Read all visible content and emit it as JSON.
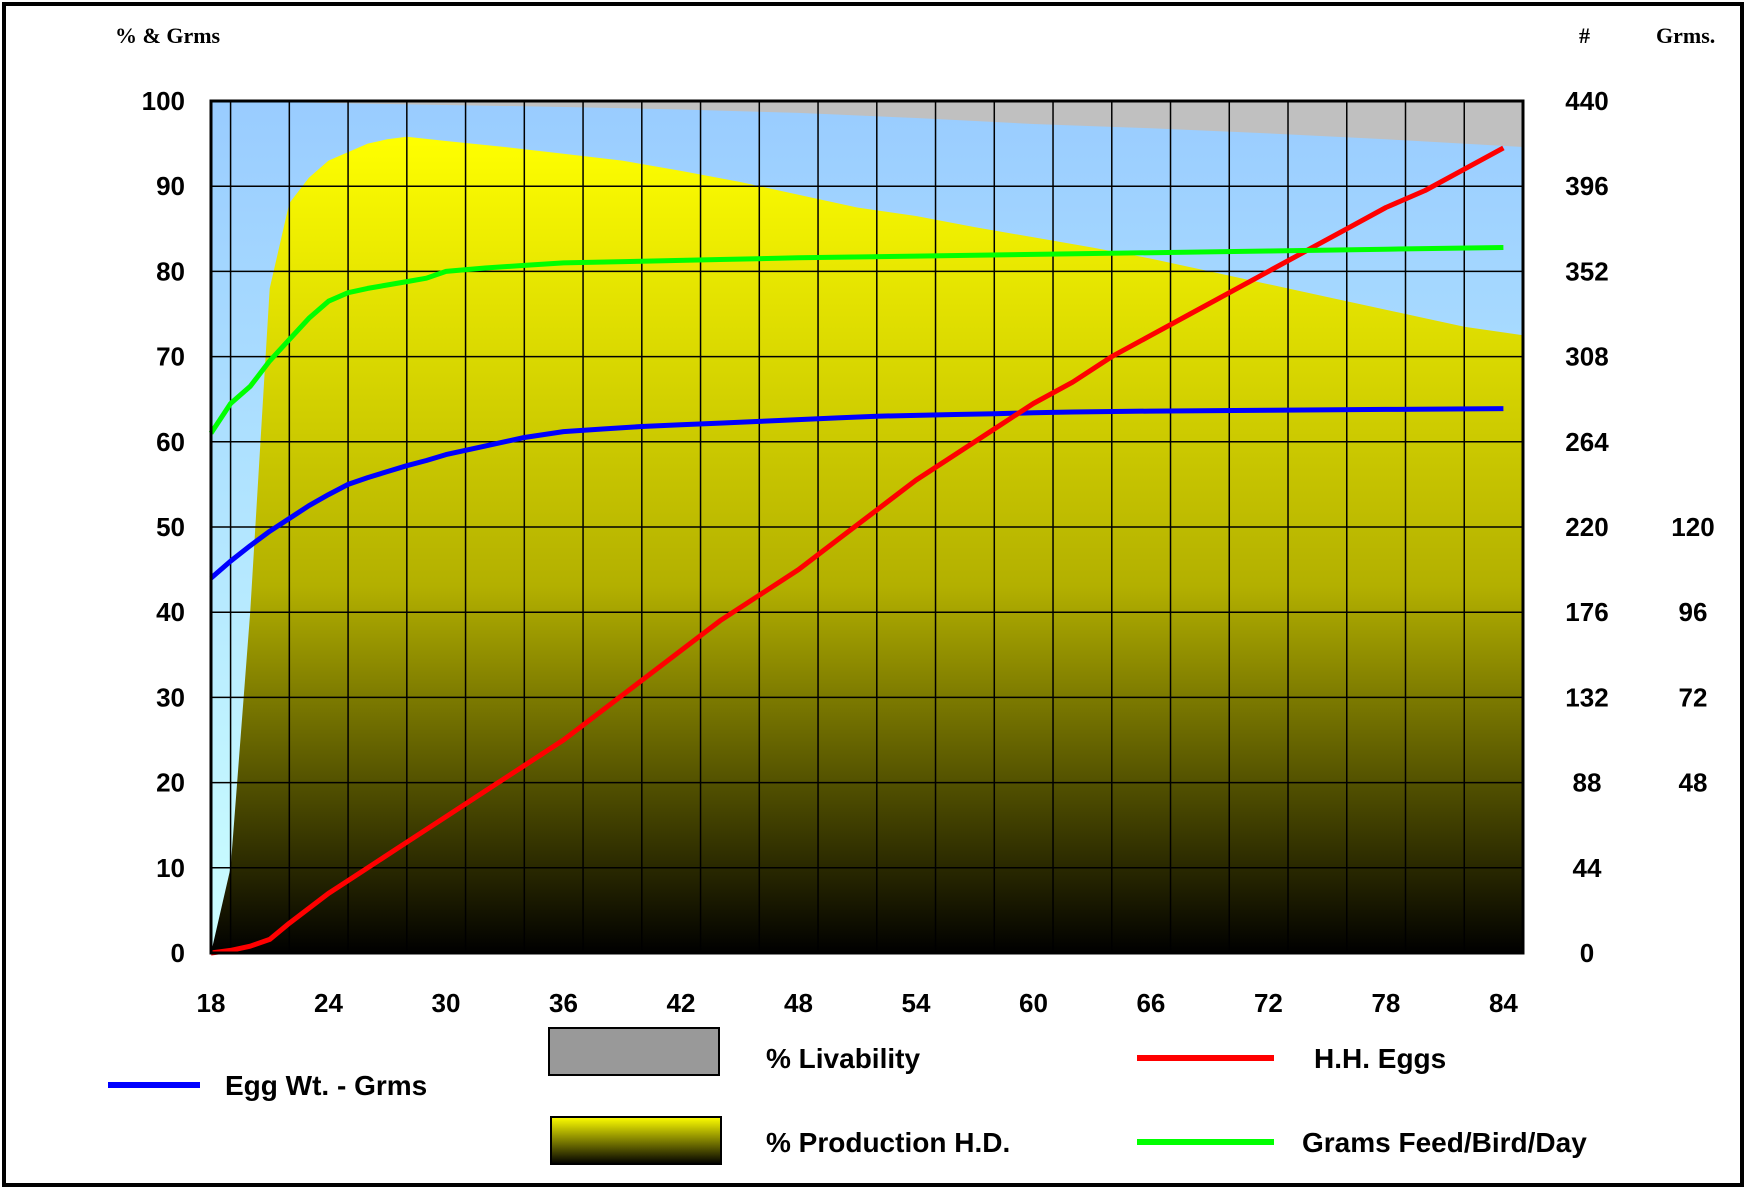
{
  "chart_data": {
    "type": "area",
    "header": {
      "left_axis_title": "% & Grms",
      "right_axis_title_1": "#",
      "right_axis_title_2": "Grms."
    },
    "x_ticks": [
      "18",
      "24",
      "30",
      "36",
      "42",
      "48",
      "54",
      "60",
      "66",
      "72",
      "78",
      "84"
    ],
    "y_left_ticks": [
      "0",
      "10",
      "20",
      "30",
      "40",
      "50",
      "60",
      "70",
      "80",
      "90",
      "100"
    ],
    "y_right1_ticks": [
      "0",
      "44",
      "88",
      "132",
      "176",
      "220",
      "264",
      "308",
      "352",
      "396",
      "440"
    ],
    "y_right2_ticks": [
      "48",
      "72",
      "96",
      "120"
    ],
    "xlim": [
      18,
      85
    ],
    "ylim": [
      0,
      100
    ],
    "grid": true,
    "colors": {
      "livability": "#c0c0c0",
      "production_top": "#ffff00",
      "production_bottom": "#000000",
      "background_top": "#99ccff",
      "background_bottom": "#ccffff",
      "egg_weight": "#0000ff",
      "hh_eggs": "#ff0000",
      "feed": "#00ff00"
    },
    "legend": {
      "egg_weight": "Egg Wt. - Grms",
      "livability": "% Livability",
      "production": "% Production H.D.",
      "hh_eggs": "H.H. Eggs",
      "feed": "Grams Feed/Bird/Day"
    },
    "series": [
      {
        "name": "% Livability",
        "x": [
          18,
          36,
          42,
          48,
          54,
          60,
          66,
          72,
          78,
          85
        ],
        "values": [
          100,
          99.3,
          99.0,
          98.6,
          98.0,
          97.3,
          96.8,
          96.2,
          95.5,
          94.6
        ]
      },
      {
        "name": "% Production H.D.",
        "x": [
          18,
          19,
          20,
          21,
          22,
          23,
          24,
          25,
          26,
          27,
          28,
          30,
          33,
          36,
          39,
          42,
          45,
          48,
          51,
          54,
          57,
          60,
          63,
          66,
          69,
          72,
          75,
          78,
          80,
          82,
          85
        ],
        "values": [
          0,
          10,
          40,
          78,
          88,
          91,
          93,
          94,
          95,
          95.5,
          95.8,
          95.3,
          94.6,
          93.8,
          93.0,
          91.8,
          90.5,
          89.0,
          87.5,
          86.5,
          85.2,
          84.0,
          82.8,
          81.5,
          80.0,
          78.5,
          77.0,
          75.5,
          74.5,
          73.5,
          72.5
        ]
      },
      {
        "name": "Egg Wt. - Grms",
        "x": [
          18,
          19,
          20,
          21,
          22,
          23,
          24,
          25,
          26,
          27,
          28,
          29,
          30,
          32,
          34,
          36,
          38,
          40,
          42,
          44,
          46,
          48,
          50,
          52,
          54,
          56,
          58,
          60,
          62,
          66,
          72,
          78,
          84
        ],
        "values": [
          44,
          46,
          47.8,
          49.5,
          51,
          52.5,
          53.8,
          55,
          55.8,
          56.5,
          57.2,
          57.8,
          58.5,
          59.5,
          60.5,
          61.2,
          61.5,
          61.8,
          62,
          62.2,
          62.4,
          62.6,
          62.8,
          63,
          63.1,
          63.2,
          63.3,
          63.4,
          63.5,
          63.6,
          63.7,
          63.8,
          63.9
        ]
      },
      {
        "name": "H.H. Eggs",
        "x": [
          18,
          19,
          20,
          21,
          22,
          24,
          26,
          28,
          30,
          32,
          34,
          36,
          38,
          40,
          42,
          44,
          46,
          48,
          50,
          52,
          54,
          56,
          58,
          60,
          62,
          64,
          66,
          68,
          70,
          72,
          74,
          76,
          78,
          80,
          82,
          84
        ],
        "values": [
          0,
          0.3,
          0.8,
          1.6,
          3.5,
          7,
          10,
          13,
          16,
          19,
          22,
          25,
          28.5,
          32,
          35.5,
          39,
          42,
          45,
          48.5,
          52,
          55.5,
          58.5,
          61.5,
          64.5,
          67,
          70,
          72.5,
          75,
          77.5,
          80,
          82.5,
          85,
          87.5,
          89.5,
          92,
          94.5
        ]
      },
      {
        "name": "Grams Feed/Bird/Day",
        "x": [
          18,
          19,
          20,
          21,
          22,
          23,
          24,
          25,
          26,
          27,
          28,
          29,
          30,
          32,
          34,
          36,
          40,
          44,
          48,
          54,
          60,
          66,
          72,
          78,
          84
        ],
        "values": [
          61,
          64.5,
          66.5,
          69.5,
          72,
          74.5,
          76.5,
          77.5,
          78,
          78.4,
          78.8,
          79.2,
          80,
          80.4,
          80.7,
          81,
          81.2,
          81.4,
          81.6,
          81.8,
          82,
          82.2,
          82.4,
          82.6,
          82.8
        ]
      }
    ]
  }
}
